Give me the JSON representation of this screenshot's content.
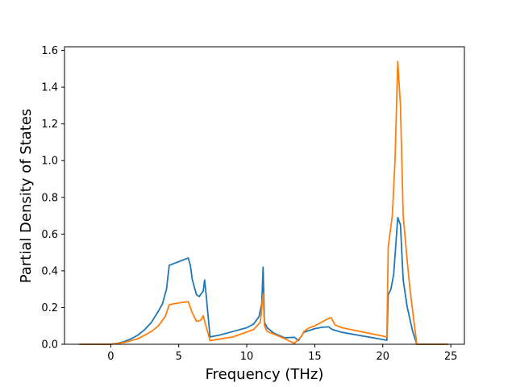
{
  "chart_data": {
    "type": "line",
    "xlabel": "Frequency (THz)",
    "ylabel": "Partial Density of States",
    "xlim": [
      -3.4,
      26.0
    ],
    "ylim": [
      0.0,
      1.62
    ],
    "xticks": [
      0,
      5,
      10,
      15,
      20,
      25
    ],
    "yticks": [
      0.0,
      0.2,
      0.4,
      0.6,
      0.8,
      1.0,
      1.2,
      1.4,
      1.6
    ],
    "xtick_labels": [
      "0",
      "5",
      "10",
      "15",
      "20",
      "25"
    ],
    "ytick_labels": [
      "0.0",
      "0.2",
      "0.4",
      "0.6",
      "0.8",
      "1.0",
      "1.2",
      "1.4",
      "1.6"
    ],
    "grid": false,
    "colors": [
      "#1f77b4",
      "#ff7f0e"
    ],
    "series": [
      {
        "x": [
          -2.3,
          0.0,
          0.5,
          1.0,
          1.5,
          2.0,
          2.5,
          3.0,
          3.5,
          3.8,
          4.1,
          4.3,
          5.0,
          5.7,
          5.85,
          6.0,
          6.3,
          6.5,
          6.8,
          6.9,
          7.0,
          7.3,
          8.0,
          9.0,
          10.0,
          10.5,
          10.9,
          11.1,
          11.2,
          11.3,
          11.5,
          12.0,
          12.8,
          13.5,
          13.8,
          14.2,
          15.0,
          15.5,
          16.0,
          16.3,
          17.0,
          20.3,
          20.4,
          20.6,
          20.8,
          21.1,
          21.3,
          21.5,
          21.8,
          22.2,
          22.5,
          24.8
        ],
        "values": [
          0.0,
          0.0,
          0.005,
          0.015,
          0.03,
          0.05,
          0.08,
          0.12,
          0.18,
          0.22,
          0.3,
          0.43,
          0.45,
          0.47,
          0.43,
          0.35,
          0.27,
          0.26,
          0.29,
          0.35,
          0.28,
          0.04,
          0.05,
          0.07,
          0.09,
          0.11,
          0.15,
          0.22,
          0.42,
          0.12,
          0.09,
          0.06,
          0.035,
          0.038,
          0.02,
          0.065,
          0.085,
          0.092,
          0.095,
          0.08,
          0.065,
          0.022,
          0.27,
          0.3,
          0.38,
          0.69,
          0.65,
          0.35,
          0.2,
          0.07,
          0.0,
          0.0
        ]
      },
      {
        "x": [
          -2.3,
          0.0,
          1.0,
          2.0,
          3.0,
          3.5,
          4.0,
          4.3,
          5.0,
          5.7,
          6.0,
          6.3,
          6.6,
          6.8,
          7.0,
          7.3,
          9.0,
          10.5,
          11.0,
          11.2,
          11.3,
          11.5,
          12.0,
          12.8,
          13.5,
          13.7,
          14.0,
          14.2,
          14.6,
          15.0,
          15.5,
          16.0,
          16.2,
          16.5,
          17.0,
          20.3,
          20.4,
          20.7,
          20.9,
          21.1,
          21.3,
          21.5,
          21.8,
          22.0,
          22.5,
          24.8
        ],
        "values": [
          0.0,
          0.0,
          0.01,
          0.03,
          0.07,
          0.1,
          0.15,
          0.215,
          0.225,
          0.232,
          0.17,
          0.125,
          0.13,
          0.155,
          0.1,
          0.02,
          0.04,
          0.08,
          0.12,
          0.275,
          0.1,
          0.07,
          0.055,
          0.03,
          0.005,
          0.02,
          0.04,
          0.07,
          0.09,
          0.1,
          0.12,
          0.14,
          0.145,
          0.105,
          0.09,
          0.04,
          0.53,
          0.7,
          1.0,
          1.54,
          1.3,
          0.7,
          0.45,
          0.3,
          0.0,
          0.0
        ]
      }
    ]
  }
}
